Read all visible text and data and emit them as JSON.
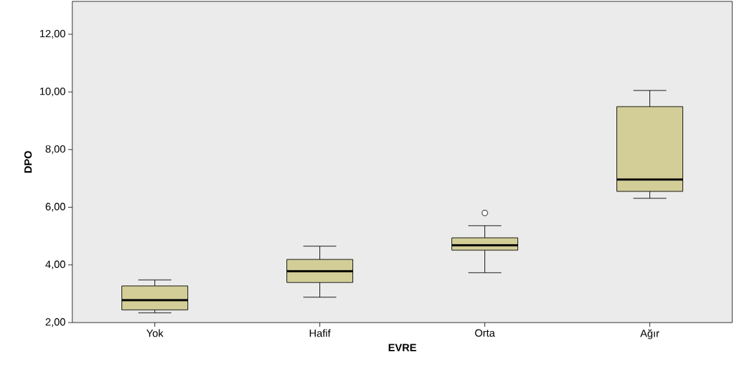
{
  "chart_data": {
    "type": "box",
    "xlabel": "EVRE",
    "ylabel": "DPO",
    "categories": [
      "Yok",
      "Hafif",
      "Orta",
      "Ağır"
    ],
    "series": [
      {
        "color": "#d3ce97",
        "boxes": [
          {
            "low": 2.34,
            "q1": 2.44,
            "median": 2.78,
            "q3": 3.27,
            "high": 3.48
          },
          {
            "low": 2.88,
            "q1": 3.39,
            "median": 3.78,
            "q3": 4.19,
            "high": 4.65
          },
          {
            "low": 3.73,
            "q1": 4.51,
            "median": 4.68,
            "q3": 4.94,
            "high": 5.36,
            "outliers": [
              5.8
            ]
          },
          {
            "low": 6.31,
            "q1": 6.55,
            "median": 6.96,
            "q3": 9.49,
            "high": 10.05
          }
        ]
      }
    ],
    "ylim": [
      2,
      13.14
    ],
    "yticks": [
      {
        "value": 2,
        "label": "2,00"
      },
      {
        "value": 4,
        "label": "4,00"
      },
      {
        "value": 6,
        "label": "6,00"
      },
      {
        "value": 8,
        "label": "8,00"
      },
      {
        "value": 10,
        "label": "10,00"
      },
      {
        "value": 12,
        "label": "12,00"
      }
    ],
    "grid": false
  }
}
